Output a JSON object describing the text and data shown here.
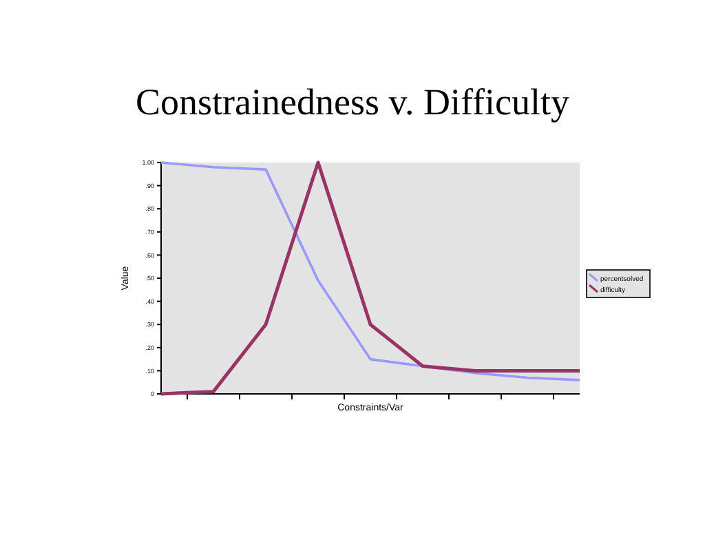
{
  "chart_data": {
    "type": "line",
    "title": "Constrainedness v. Difficulty",
    "xlabel": "Constraints/Var",
    "ylabel": "Value",
    "categories": [
      null,
      null,
      null,
      null,
      null,
      null,
      null,
      null,
      null
    ],
    "series": [
      {
        "name": "percentsolved",
        "color": "#9999ff",
        "values": [
          1.0,
          0.98,
          0.97,
          0.49,
          0.15,
          0.12,
          0.09,
          0.07,
          0.06
        ]
      },
      {
        "name": "difficulty",
        "color": "#993366",
        "values": [
          0,
          0.01,
          0.3,
          1.0,
          0.3,
          0.12,
          0.1,
          0.1,
          0.1
        ]
      }
    ],
    "ylim": [
      0,
      1
    ],
    "yticks": [
      0,
      {
        "value": 0.1,
        "label": ".10"
      },
      {
        "value": 0.2,
        "label": ".20"
      },
      {
        "value": 0.3,
        "label": ".30"
      },
      {
        "value": 0.4,
        "label": ".40"
      },
      {
        "value": 0.5,
        "label": ".50"
      },
      {
        "value": 0.6,
        "label": ".60"
      },
      {
        "value": 0.7,
        "label": ".70"
      },
      {
        "value": 0.8,
        "label": ".80"
      },
      {
        "value": 0.9,
        "label": ".90"
      },
      {
        "value": 1,
        "label": "1.00"
      }
    ],
    "legend": "right",
    "marker": "none",
    "line_style": "solid"
  }
}
